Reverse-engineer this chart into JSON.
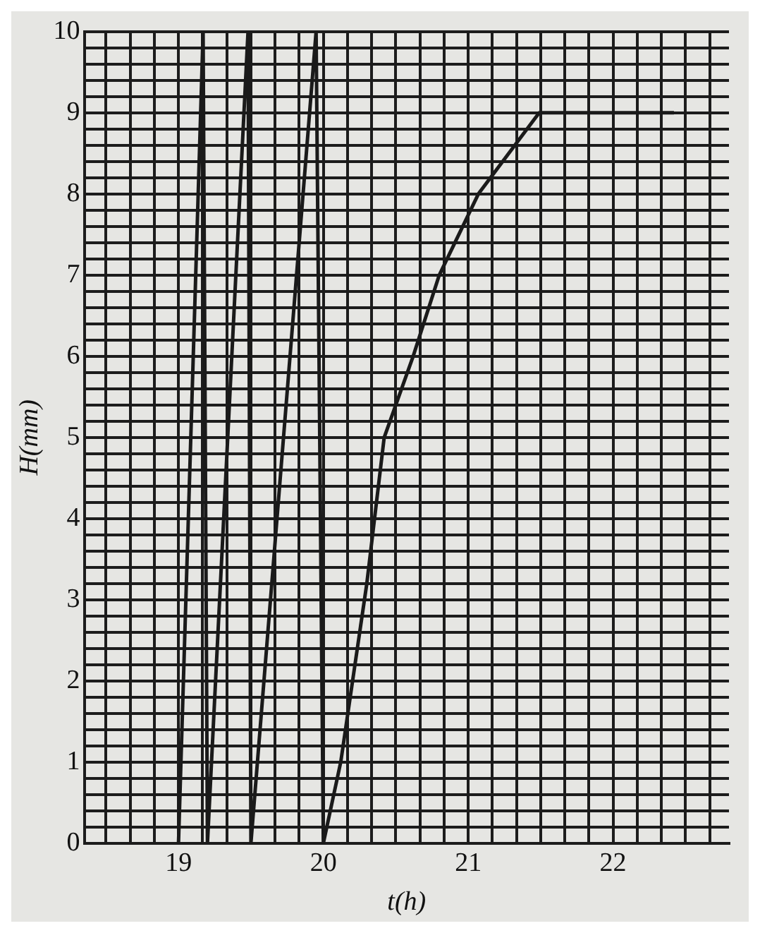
{
  "chart_data": {
    "type": "line",
    "xlabel": "t(h)",
    "ylabel": "H(mm)",
    "x": [
      19.0,
      19.17,
      19.2,
      19.48,
      19.5,
      19.95,
      20.0,
      20.12,
      20.3,
      20.42,
      20.62,
      20.8,
      21.07,
      21.49,
      22.42
    ],
    "series": [
      {
        "color": "#1a1a1a",
        "values": [
          0,
          10,
          0,
          10,
          0,
          10,
          0,
          1,
          3.2,
          5,
          6,
          7,
          8,
          9,
          9
        ]
      }
    ],
    "xlim": [
      18.35,
      22.8
    ],
    "xticks": [
      {
        "value": 18.5,
        "label": null
      },
      {
        "value": 18.6667,
        "label": null
      },
      {
        "value": 18.8333,
        "label": null
      },
      19,
      {
        "value": 19.1667,
        "label": null
      },
      {
        "value": 19.3333,
        "label": null
      },
      {
        "value": 19.5,
        "label": null
      },
      {
        "value": 19.6667,
        "label": null
      },
      {
        "value": 19.8333,
        "label": null
      },
      20,
      {
        "value": 20.1667,
        "label": null
      },
      {
        "value": 20.3333,
        "label": null
      },
      {
        "value": 20.5,
        "label": null
      },
      {
        "value": 20.6667,
        "label": null
      },
      {
        "value": 20.8333,
        "label": null
      },
      21,
      {
        "value": 21.1667,
        "label": null
      },
      {
        "value": 21.3333,
        "label": null
      },
      {
        "value": 21.5,
        "label": null
      },
      {
        "value": 21.6667,
        "label": null
      },
      {
        "value": 21.8333,
        "label": null
      },
      22,
      {
        "value": 22.1667,
        "label": null
      },
      {
        "value": 22.3333,
        "label": null
      },
      {
        "value": 22.5,
        "label": null
      },
      {
        "value": 22.6667,
        "label": null
      }
    ],
    "ylim": [
      0,
      10
    ],
    "yticks": [
      0,
      {
        "value": 0.2,
        "label": null
      },
      {
        "value": 0.4,
        "label": null
      },
      {
        "value": 0.6,
        "label": null
      },
      {
        "value": 0.8,
        "label": null
      },
      1,
      {
        "value": 1.2,
        "label": null
      },
      {
        "value": 1.4,
        "label": null
      },
      {
        "value": 1.6,
        "label": null
      },
      {
        "value": 1.8,
        "label": null
      },
      2,
      {
        "value": 2.2,
        "label": null
      },
      {
        "value": 2.4,
        "label": null
      },
      {
        "value": 2.6,
        "label": null
      },
      {
        "value": 2.8,
        "label": null
      },
      3,
      {
        "value": 3.2,
        "label": null
      },
      {
        "value": 3.4,
        "label": null
      },
      {
        "value": 3.6,
        "label": null
      },
      {
        "value": 3.8,
        "label": null
      },
      4,
      {
        "value": 4.2,
        "label": null
      },
      {
        "value": 4.4,
        "label": null
      },
      {
        "value": 4.6,
        "label": null
      },
      {
        "value": 4.8,
        "label": null
      },
      5,
      {
        "value": 5.2,
        "label": null
      },
      {
        "value": 5.4,
        "label": null
      },
      {
        "value": 5.6,
        "label": null
      },
      {
        "value": 5.8,
        "label": null
      },
      6,
      {
        "value": 6.2,
        "label": null
      },
      {
        "value": 6.4,
        "label": null
      },
      {
        "value": 6.6,
        "label": null
      },
      {
        "value": 6.8,
        "label": null
      },
      7,
      {
        "value": 7.2,
        "label": null
      },
      {
        "value": 7.4,
        "label": null
      },
      {
        "value": 7.6,
        "label": null
      },
      {
        "value": 7.8,
        "label": null
      },
      8,
      {
        "value": 8.2,
        "label": null
      },
      {
        "value": 8.4,
        "label": null
      },
      {
        "value": 8.6,
        "label": null
      },
      {
        "value": 8.8,
        "label": null
      },
      9,
      {
        "value": 9.2,
        "label": null
      },
      {
        "value": 9.4,
        "label": null
      },
      {
        "value": 9.6,
        "label": null
      },
      {
        "value": 9.8,
        "label": null
      },
      10
    ],
    "grid": true,
    "legend": false,
    "marker": "none",
    "line_style": "solid"
  }
}
